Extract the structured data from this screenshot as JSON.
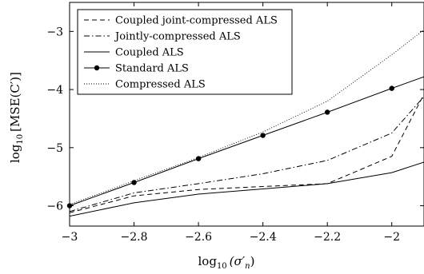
{
  "chart_data": {
    "type": "line",
    "title": "",
    "xlabel_main": "log",
    "xlabel_sub": "10",
    "xlabel_arg": "(σ′",
    "xlabel_arg_sub": "n",
    "xlabel_close": ")",
    "ylabel_main": "log",
    "ylabel_sub": "10",
    "ylabel_arg": "[MSE(C′)]",
    "xlim": [
      -3.0,
      -1.9
    ],
    "ylim": [
      -6.35,
      -2.5
    ],
    "xticks": [
      -3,
      -2.8,
      -2.6,
      -2.4,
      -2.2,
      -2
    ],
    "xtick_labels": [
      "−3",
      "−2.8",
      "−2.6",
      "−2.4",
      "−2.2",
      "−2"
    ],
    "yticks": [
      -6,
      -5,
      -4,
      -3
    ],
    "ytick_labels": [
      "−6",
      "−5",
      "−4",
      "−3"
    ],
    "grid": false,
    "legend_position": "top-left",
    "series": [
      {
        "name": "Coupled joint-compressed ALS",
        "style": "dashed",
        "x": [
          -3.0,
          -2.8,
          -2.6,
          -2.4,
          -2.2,
          -2.0,
          -1.9
        ],
        "y": [
          -6.12,
          -5.83,
          -5.72,
          -5.67,
          -5.62,
          -5.15,
          -4.08
        ]
      },
      {
        "name": "Jointly-compressed ALS",
        "style": "dashdot",
        "x": [
          -3.0,
          -2.8,
          -2.6,
          -2.4,
          -2.2,
          -2.0,
          -1.9
        ],
        "y": [
          -6.1,
          -5.78,
          -5.62,
          -5.45,
          -5.22,
          -4.75,
          -4.12
        ]
      },
      {
        "name": "Coupled ALS",
        "style": "solid",
        "x": [
          -3.0,
          -2.8,
          -2.6,
          -2.4,
          -2.2,
          -2.0,
          -1.9
        ],
        "y": [
          -6.18,
          -5.95,
          -5.8,
          -5.71,
          -5.62,
          -5.43,
          -5.25
        ]
      },
      {
        "name": "Standard ALS",
        "style": "solid-marker",
        "x": [
          -3.0,
          -2.8,
          -2.6,
          -2.4,
          -2.2,
          -2.0,
          -1.9
        ],
        "y": [
          -6.0,
          -5.6,
          -5.19,
          -4.79,
          -4.39,
          -3.98,
          -3.78
        ],
        "markers": [
          true,
          true,
          true,
          true,
          true,
          true,
          false
        ]
      },
      {
        "name": "Compressed ALS",
        "style": "dotted",
        "x": [
          -3.0,
          -2.8,
          -2.6,
          -2.4,
          -2.2,
          -2.0,
          -1.9
        ],
        "y": [
          -5.98,
          -5.57,
          -5.17,
          -4.73,
          -4.2,
          -3.4,
          -2.97
        ]
      }
    ]
  }
}
